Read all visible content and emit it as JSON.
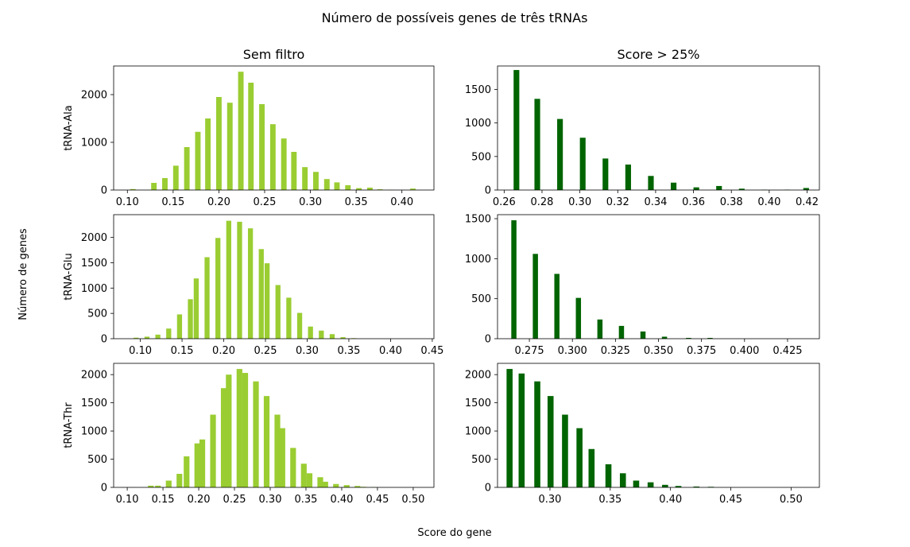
{
  "figure": {
    "suptitle": "Número de possíveis genes de três tRNAs",
    "supxlabel": "Score do gene",
    "supylabel": "Número de genes"
  },
  "chart_data": [
    {
      "type": "bar",
      "title": "Sem filtro",
      "ylabel": "tRNA-Ala",
      "color": "#9acd32",
      "xlim": [
        0.085,
        0.435
      ],
      "ylim": [
        0,
        2600
      ],
      "xticks": [
        "0.10",
        "0.15",
        "0.20",
        "0.25",
        "0.30",
        "0.35",
        "0.40"
      ],
      "yticks": [
        "0",
        "1000",
        "2000"
      ],
      "bar_width": 0.006,
      "x": [
        0.106,
        0.129,
        0.141,
        0.153,
        0.165,
        0.177,
        0.188,
        0.2,
        0.212,
        0.224,
        0.235,
        0.247,
        0.259,
        0.271,
        0.282,
        0.294,
        0.306,
        0.318,
        0.329,
        0.341,
        0.353,
        0.365,
        0.376,
        0.388,
        0.412
      ],
      "values": [
        20,
        150,
        250,
        510,
        900,
        1220,
        1500,
        1950,
        1830,
        2480,
        2250,
        1800,
        1380,
        1080,
        800,
        480,
        380,
        230,
        160,
        100,
        40,
        50,
        15,
        5,
        30
      ]
    },
    {
      "type": "bar",
      "title": "Score > 25%",
      "ylabel": "",
      "color": "#006400",
      "xlim": [
        0.2565,
        0.4265
      ],
      "ylim": [
        0,
        1850
      ],
      "xticks": [
        "0.26",
        "0.28",
        "0.30",
        "0.32",
        "0.34",
        "0.36",
        "0.38",
        "0.40",
        "0.42"
      ],
      "yticks": [
        "0",
        "500",
        "1000",
        "1500"
      ],
      "bar_width": 0.003,
      "x": [
        0.2665,
        0.2775,
        0.2895,
        0.3015,
        0.3135,
        0.3255,
        0.3375,
        0.3495,
        0.3615,
        0.3735,
        0.3855,
        0.3975,
        0.4095,
        0.4195
      ],
      "values": [
        1790,
        1360,
        1060,
        780,
        470,
        380,
        210,
        110,
        40,
        60,
        20,
        5,
        5,
        30
      ]
    },
    {
      "type": "bar",
      "title": "",
      "ylabel": "tRNA-Glu",
      "color": "#9acd32",
      "xlim": [
        0.068,
        0.452
      ],
      "ylim": [
        0,
        2450
      ],
      "xticks": [
        "0.10",
        "0.15",
        "0.20",
        "0.25",
        "0.30",
        "0.35",
        "0.40",
        "0.45"
      ],
      "yticks": [
        "0",
        "500",
        "1000",
        "1500",
        "2000"
      ],
      "bar_width": 0.006,
      "x": [
        0.095,
        0.108,
        0.121,
        0.134,
        0.147,
        0.16,
        0.167,
        0.18,
        0.193,
        0.206,
        0.219,
        0.232,
        0.245,
        0.252,
        0.265,
        0.278,
        0.291,
        0.304,
        0.317,
        0.33,
        0.343,
        0.356
      ],
      "values": [
        20,
        40,
        80,
        200,
        480,
        780,
        1190,
        1610,
        1990,
        2330,
        2310,
        2180,
        1770,
        1490,
        1060,
        810,
        510,
        240,
        160,
        90,
        30,
        10
      ]
    },
    {
      "type": "bar",
      "title": "",
      "ylabel": "",
      "color": "#006400",
      "xlim": [
        0.2565,
        0.4435
      ],
      "ylim": [
        0,
        1550
      ],
      "xticks": [
        "0.275",
        "0.300",
        "0.325",
        "0.350",
        "0.375",
        "0.400",
        "0.425"
      ],
      "yticks": [
        "0",
        "500",
        "1000",
        "1500"
      ],
      "bar_width": 0.003,
      "x": [
        0.266,
        0.2785,
        0.291,
        0.3035,
        0.316,
        0.3285,
        0.341,
        0.3535,
        0.3675,
        0.38,
        0.3925,
        0.405,
        0.4175,
        0.43
      ],
      "values": [
        1480,
        1060,
        810,
        510,
        240,
        160,
        90,
        25,
        10,
        10,
        0,
        0,
        0,
        0
      ]
    },
    {
      "type": "bar",
      "title": "",
      "ylabel": "tRNA-Thr",
      "color": "#9acd32",
      "xlim": [
        0.081,
        0.529
      ],
      "ylim": [
        0,
        2200
      ],
      "xticks": [
        "0.10",
        "0.15",
        "0.20",
        "0.25",
        "0.30",
        "0.35",
        "0.40",
        "0.45",
        "0.50"
      ],
      "yticks": [
        "0",
        "500",
        "1000",
        "1500",
        "2000"
      ],
      "bar_width": 0.008,
      "x": [
        0.133,
        0.143,
        0.158,
        0.173,
        0.183,
        0.198,
        0.205,
        0.22,
        0.235,
        0.242,
        0.257,
        0.265,
        0.28,
        0.295,
        0.31,
        0.317,
        0.332,
        0.347,
        0.355,
        0.37,
        0.377,
        0.392,
        0.407,
        0.422,
        0.43,
        0.445
      ],
      "values": [
        30,
        30,
        120,
        240,
        550,
        780,
        850,
        1290,
        1760,
        2000,
        2100,
        2030,
        1880,
        1620,
        1290,
        1050,
        700,
        420,
        250,
        180,
        100,
        60,
        40,
        25,
        10,
        5
      ]
    },
    {
      "type": "bar",
      "title": "",
      "ylabel": "",
      "color": "#006400",
      "xlim": [
        0.2565,
        0.5235
      ],
      "ylim": [
        0,
        2200
      ],
      "xticks": [
        "0.30",
        "0.35",
        "0.40",
        "0.45",
        "0.50"
      ],
      "yticks": [
        "0",
        "500",
        "1000",
        "1500",
        "2000"
      ],
      "bar_width": 0.005,
      "x": [
        0.2665,
        0.2765,
        0.2895,
        0.3005,
        0.3125,
        0.3245,
        0.3345,
        0.3485,
        0.3605,
        0.3715,
        0.3835,
        0.3955,
        0.4065,
        0.4215,
        0.4335,
        0.4455
      ],
      "values": [
        2100,
        2020,
        1880,
        1620,
        1290,
        1050,
        680,
        410,
        250,
        120,
        90,
        45,
        25,
        15,
        10,
        0
      ]
    }
  ]
}
